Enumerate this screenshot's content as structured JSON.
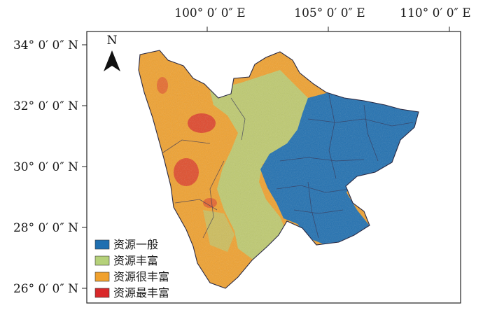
{
  "map": {
    "x_ticks": [
      "100° 0′ 0″ E",
      "105° 0′ 0″ E",
      "110° 0′ 0″ E"
    ],
    "y_ticks": [
      "34° 0′ 0″ N",
      "32° 0′ 0″ N",
      "30° 0′ 0″ N",
      "28° 0′ 0″ N",
      "26° 0′ 0″ N"
    ],
    "north_label": "N"
  },
  "legend": {
    "items": [
      {
        "label": "资源一般",
        "color": "#1f6fb0"
      },
      {
        "label": "资源丰富",
        "color": "#b5d17a"
      },
      {
        "label": "资源很丰富",
        "color": "#f0a12e"
      },
      {
        "label": "资源最丰富",
        "color": "#d9282a"
      }
    ]
  }
}
